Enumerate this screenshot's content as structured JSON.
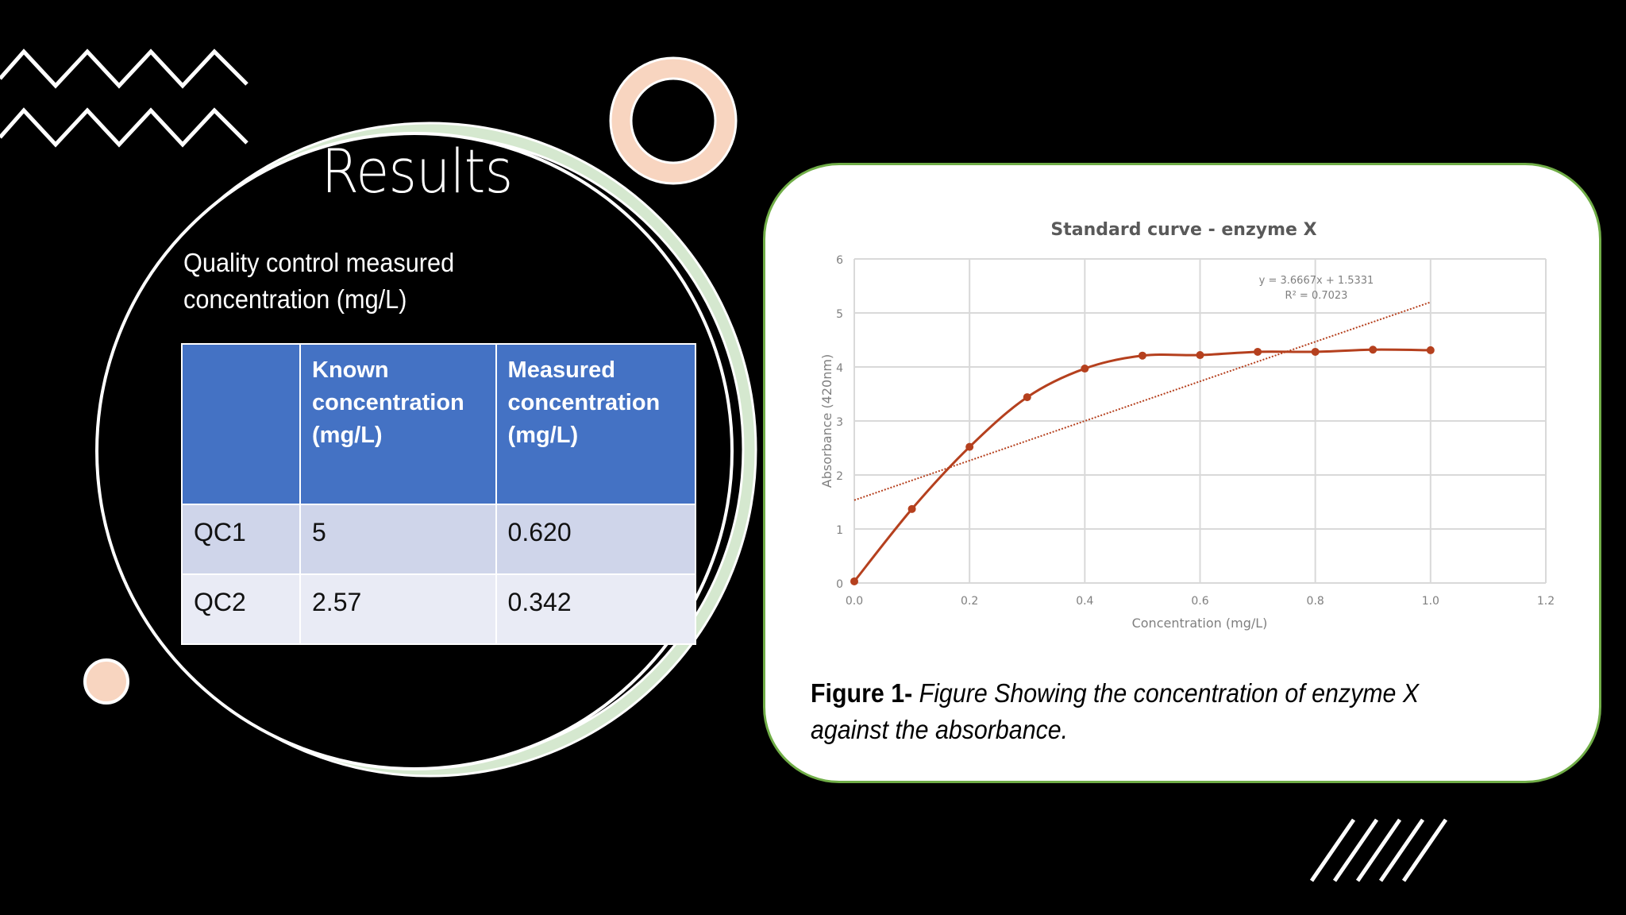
{
  "slide": {
    "title": "Results",
    "subtitle_line1": "Quality control measured",
    "subtitle_line2": "concentration (mg/L)"
  },
  "qc_table": {
    "headers": [
      "",
      "Known concentration (mg/L)",
      "Measured concentration (mg/L)"
    ],
    "header_lines": {
      "known": [
        "Known",
        "concentration",
        "(mg/L)"
      ],
      "measured": [
        "Measured",
        "concentration",
        "(mg/L)"
      ]
    },
    "rows": [
      {
        "label": "QC1",
        "known": "5",
        "measured": "0.620"
      },
      {
        "label": "QC2",
        "known": "2.57",
        "measured": "0.342"
      }
    ]
  },
  "figure": {
    "caption_bold": "Figure 1-",
    "caption_italic": " Figure Showing the concentration of enzyme X against the absorbance."
  },
  "colors": {
    "background": "#000000",
    "table_header": "#4472C4",
    "table_row_1": "#CFD5EA",
    "table_row_2": "#E9EBF5",
    "card_border": "#70AD47",
    "accent_peach": "#F8D5C0",
    "accent_green": "#D5E8CF",
    "series": "#B5401E"
  },
  "chart_data": {
    "type": "line",
    "title": "Standard curve - enzyme X",
    "xlabel": "Concentration (mg/L)",
    "ylabel": "Absorbance (420nm)",
    "xlim": [
      0.0,
      1.2
    ],
    "ylim": [
      0,
      6
    ],
    "x_ticks": [
      "0.0",
      "0.2",
      "0.4",
      "0.6",
      "0.8",
      "1.0",
      "1.2"
    ],
    "y_ticks": [
      "0",
      "1",
      "2",
      "3",
      "4",
      "5",
      "6"
    ],
    "grid": true,
    "legend": "none",
    "series": [
      {
        "name": "Absorbance",
        "x": [
          0.0,
          0.1,
          0.2,
          0.3,
          0.4,
          0.5,
          0.6,
          0.7,
          0.8,
          0.9,
          1.0
        ],
        "values": [
          0.03,
          1.37,
          2.52,
          3.44,
          3.97,
          4.21,
          4.22,
          4.28,
          4.28,
          4.32,
          4.31
        ],
        "style": "smoothed line with markers"
      }
    ],
    "trendline": {
      "type": "linear",
      "style": "dotted",
      "slope": 3.6667,
      "intercept": 1.5331,
      "x_range": [
        0.0,
        1.0
      ],
      "equation": "y = 3.6667x + 1.5331",
      "r_squared": "R² = 0.7023"
    }
  }
}
